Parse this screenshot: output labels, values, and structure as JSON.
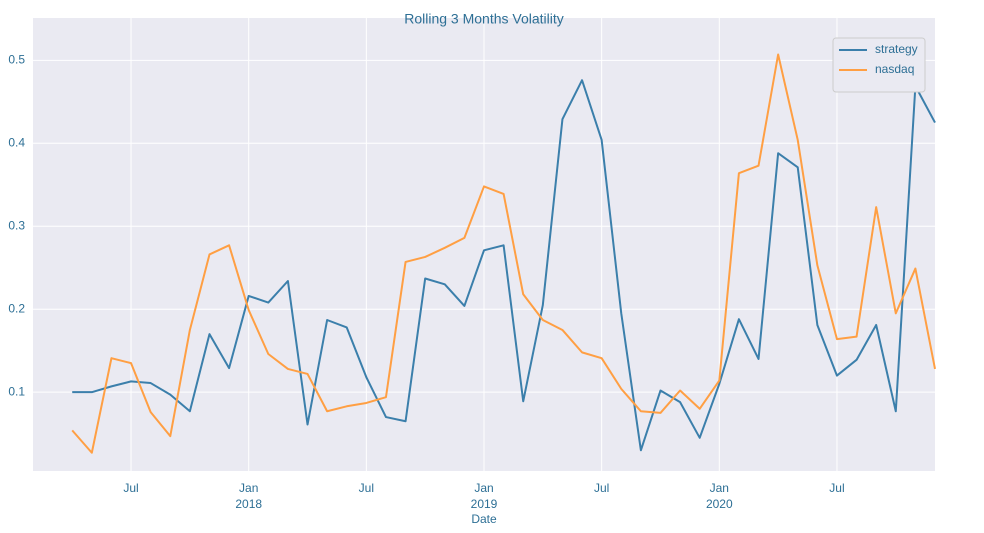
{
  "chart_data": {
    "type": "line",
    "title": "Rolling 3 Months Volatility",
    "x_label": "Date",
    "x": [
      "2017-04",
      "2017-05",
      "2017-06",
      "2017-07",
      "2017-08",
      "2017-09",
      "2017-10",
      "2017-11",
      "2017-12",
      "2018-01",
      "2018-02",
      "2018-03",
      "2018-04",
      "2018-05",
      "2018-06",
      "2018-07",
      "2018-08",
      "2018-09",
      "2018-10",
      "2018-11",
      "2018-12",
      "2019-01",
      "2019-02",
      "2019-03",
      "2019-04",
      "2019-05",
      "2019-06",
      "2019-07",
      "2019-08",
      "2019-09",
      "2019-10",
      "2019-11",
      "2019-12",
      "2020-01",
      "2020-02",
      "2020-03",
      "2020-04",
      "2020-05",
      "2020-06",
      "2020-07",
      "2020-08",
      "2020-09",
      "2020-10",
      "2020-11",
      "2020-12"
    ],
    "series": [
      {
        "name": "strategy",
        "color": "#3b7fab",
        "values": [
          0.1,
          0.1,
          0.107,
          0.113,
          0.111,
          0.097,
          0.077,
          0.17,
          0.129,
          0.216,
          0.208,
          0.234,
          0.061,
          0.187,
          0.178,
          0.118,
          0.07,
          0.065,
          0.237,
          0.23,
          0.204,
          0.271,
          0.277,
          0.089,
          0.205,
          0.429,
          0.476,
          0.404,
          0.195,
          0.03,
          0.102,
          0.088,
          0.045,
          0.11,
          0.188,
          0.14,
          0.388,
          0.371,
          0.181,
          0.12,
          0.139,
          0.181,
          0.077,
          0.469,
          0.425
        ]
      },
      {
        "name": "nasdaq",
        "color": "#ff9f43",
        "values": [
          0.054,
          0.027,
          0.141,
          0.135,
          0.076,
          0.047,
          0.175,
          0.266,
          0.277,
          0.199,
          0.146,
          0.128,
          0.122,
          0.077,
          0.083,
          0.087,
          0.094,
          0.257,
          0.263,
          0.274,
          0.286,
          0.348,
          0.339,
          0.218,
          0.187,
          0.175,
          0.148,
          0.141,
          0.104,
          0.077,
          0.075,
          0.102,
          0.08,
          0.114,
          0.364,
          0.373,
          0.507,
          0.404,
          0.253,
          0.164,
          0.167,
          0.323,
          0.195,
          0.249,
          0.128
        ]
      }
    ],
    "xlim": [
      "2017-02",
      "2020-12"
    ],
    "xticks": [
      {
        "value": "2017-07",
        "label": "Jul"
      },
      {
        "value": "2018-01",
        "label": "Jan\n2018"
      },
      {
        "value": "2018-07",
        "label": "Jul"
      },
      {
        "value": "2019-01",
        "label": "Jan\n2019"
      },
      {
        "value": "2019-07",
        "label": "Jul"
      },
      {
        "value": "2020-01",
        "label": "Jan\n2020"
      },
      {
        "value": "2020-07",
        "label": "Jul"
      }
    ],
    "ylim": [
      0.005,
      0.551
    ],
    "yticks": [
      0.1,
      0.2,
      0.3,
      0.4,
      0.5
    ],
    "grid": true,
    "legend": "upper right"
  }
}
